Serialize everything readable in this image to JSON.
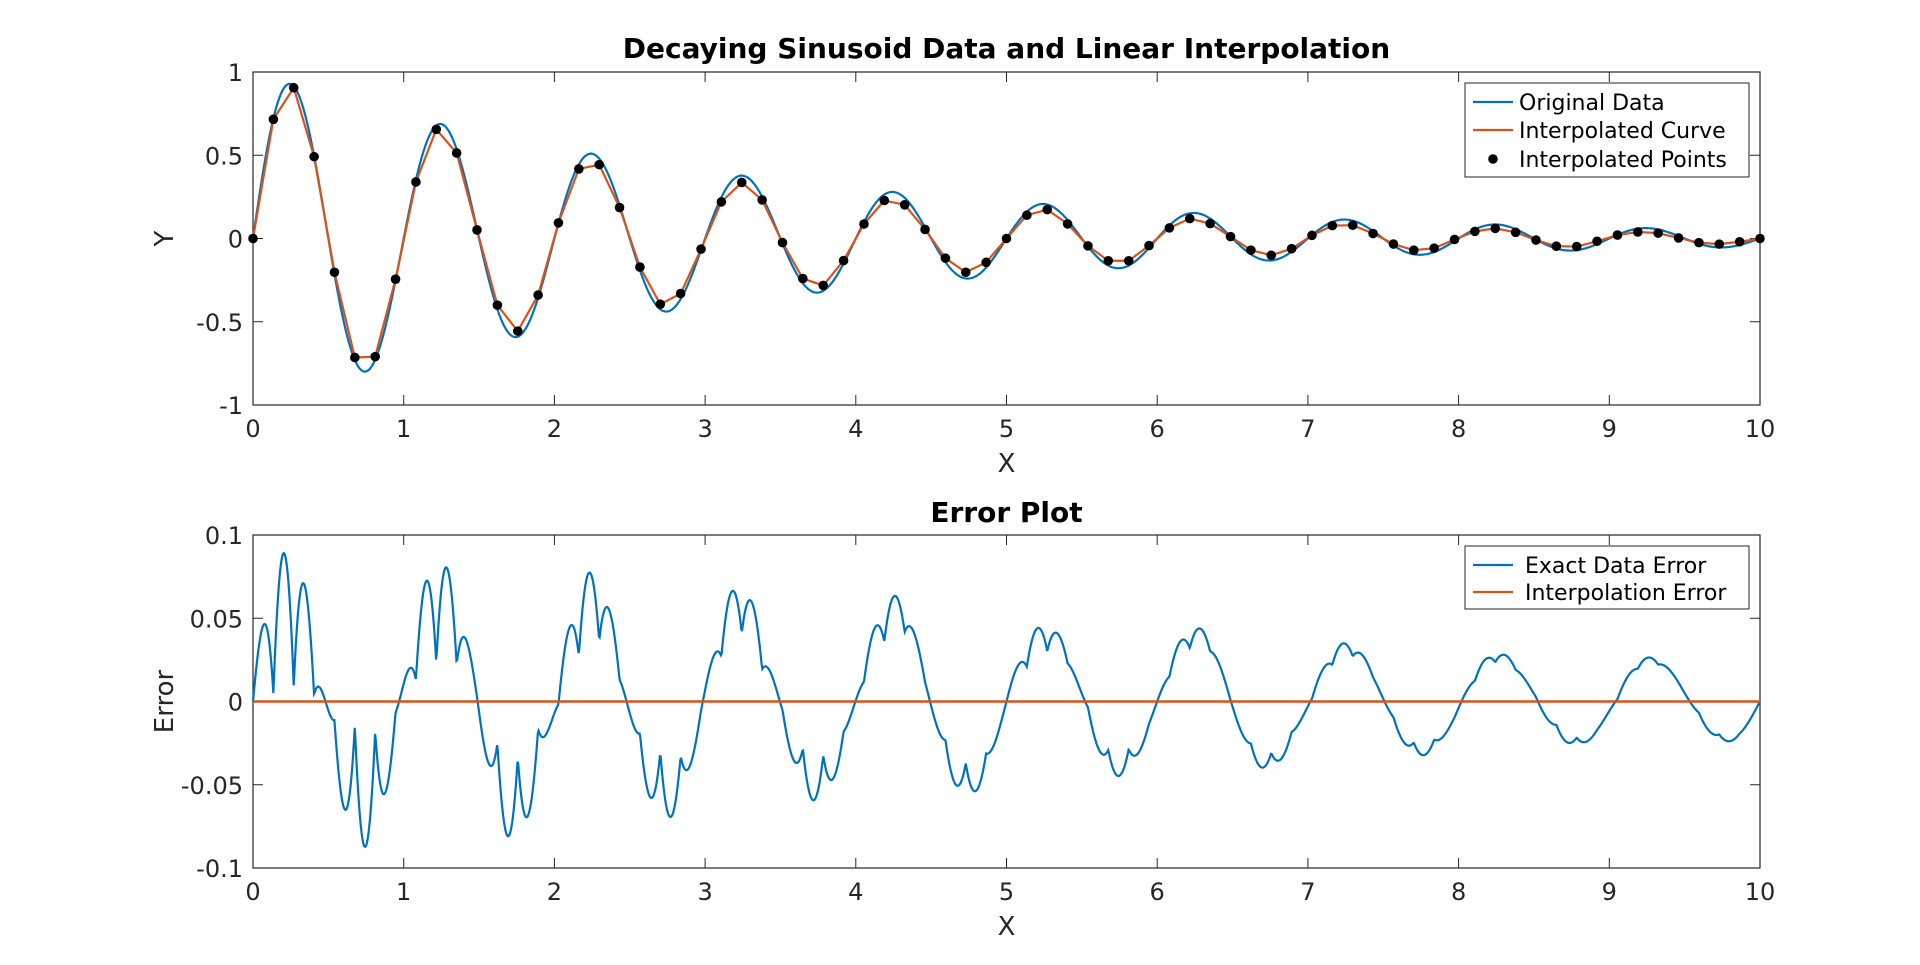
{
  "chart_data": [
    {
      "type": "line",
      "title": "Decaying Sinusoid Data and Linear Interpolation",
      "xlabel": "X",
      "ylabel": "Y",
      "xlim": [
        0,
        10
      ],
      "ylim": [
        -1,
        1
      ],
      "xticks": [
        "0",
        "1",
        "2",
        "3",
        "4",
        "5",
        "6",
        "7",
        "8",
        "9",
        "10"
      ],
      "yticks": [
        "-1",
        "-0.5",
        "0",
        "0.5",
        "1"
      ],
      "grid": false,
      "legend_position": "top-right",
      "series": [
        {
          "name": "Original Data",
          "color": "#0072BD",
          "style": "line",
          "function": "exp(-0.3x)*sin(2*pi*x)",
          "x_start": 0,
          "x_end": 10
        },
        {
          "name": "Interpolated Curve",
          "color": "#D95319",
          "style": "line"
        },
        {
          "name": "Interpolated Points",
          "color": "#000000",
          "style": "markers"
        }
      ],
      "interpolated_x": [
        0.0,
        0.1351,
        0.2703,
        0.4054,
        0.5405,
        0.6757,
        0.8108,
        0.9459,
        1.0811,
        1.2162,
        1.3514,
        1.4865,
        1.6216,
        1.7568,
        1.8919,
        2.027,
        2.1622,
        2.2973,
        2.4324,
        2.5676,
        2.7027,
        2.8378,
        2.973,
        3.1081,
        3.2432,
        3.3784,
        3.5135,
        3.6486,
        3.7838,
        3.9189,
        4.0541,
        4.1892,
        4.3243,
        4.4595,
        4.5946,
        4.7297,
        4.8649,
        5.0,
        5.1351,
        5.2703,
        5.4054,
        5.5405,
        5.6757,
        5.8108,
        5.9459,
        6.0811,
        6.2162,
        6.3514,
        6.4865,
        6.6216,
        6.7568,
        6.8919,
        7.027,
        7.1622,
        7.2973,
        7.4324,
        7.5676,
        7.7027,
        7.8378,
        7.973,
        8.1081,
        8.2432,
        8.3784,
        8.5135,
        8.6486,
        8.7838,
        8.9189,
        9.0541,
        9.1892,
        9.3243,
        9.4595,
        9.5946,
        9.7297,
        9.8649,
        10.0
      ],
      "interpolated_y": [
        0.0,
        0.7158,
        0.9056,
        0.4918,
        -0.2029,
        -0.7145,
        -0.7097,
        -0.2444,
        0.3396,
        0.6554,
        0.5137,
        0.0515,
        -0.4002,
        -0.5563,
        -0.3395,
        0.0936,
        0.4179,
        0.4436,
        0.1857,
        -0.1716,
        -0.3947,
        -0.3307,
        -0.0637,
        0.2202,
        0.3367,
        0.2318,
        -0.0245,
        -0.2407,
        -0.2819,
        -0.1324,
        0.0871,
        0.2282,
        0.2023,
        0.0544,
        -0.1181,
        -0.2029,
        -0.1432,
        0.0,
        0.1399,
        0.1739,
        0.0877,
        -0.0443,
        -0.1336,
        -0.1337,
        -0.0427,
        0.0638,
        0.1195,
        0.0896,
        0.0112,
        -0.0698,
        -0.1007,
        -0.0612,
        0.0189,
        0.0773,
        0.0799,
        0.0299,
        -0.0332,
        -0.0702,
        -0.0582,
        -0.0059,
        0.0428,
        0.0607,
        0.0371,
        -0.0093,
        -0.0461,
        -0.0484,
        -0.0166,
        0.0206,
        0.0393,
        0.0323,
        0.0034,
        -0.0248,
        -0.0338,
        -0.0197,
        0.0
      ]
    },
    {
      "type": "line",
      "title": "Error Plot",
      "xlabel": "X",
      "ylabel": "Error",
      "xlim": [
        0,
        10
      ],
      "ylim": [
        -0.1,
        0.1
      ],
      "xticks": [
        "0",
        "1",
        "2",
        "3",
        "4",
        "5",
        "6",
        "7",
        "8",
        "9",
        "10"
      ],
      "yticks": [
        "-0.1",
        "-0.05",
        "0",
        "0.05",
        "0.1"
      ],
      "grid": false,
      "legend_position": "top-right",
      "series": [
        {
          "name": "Exact Data Error",
          "color": "#0072BD",
          "style": "line",
          "description_shape": "oscillating error between original data and linear interpolation, peak ~0.08 near x=0.2, decaying to ~0.003 by x=10"
        },
        {
          "name": "Interpolation Error",
          "color": "#D95319",
          "style": "line",
          "values": [
            0,
            0
          ],
          "x": [
            0,
            10
          ]
        }
      ]
    }
  ]
}
